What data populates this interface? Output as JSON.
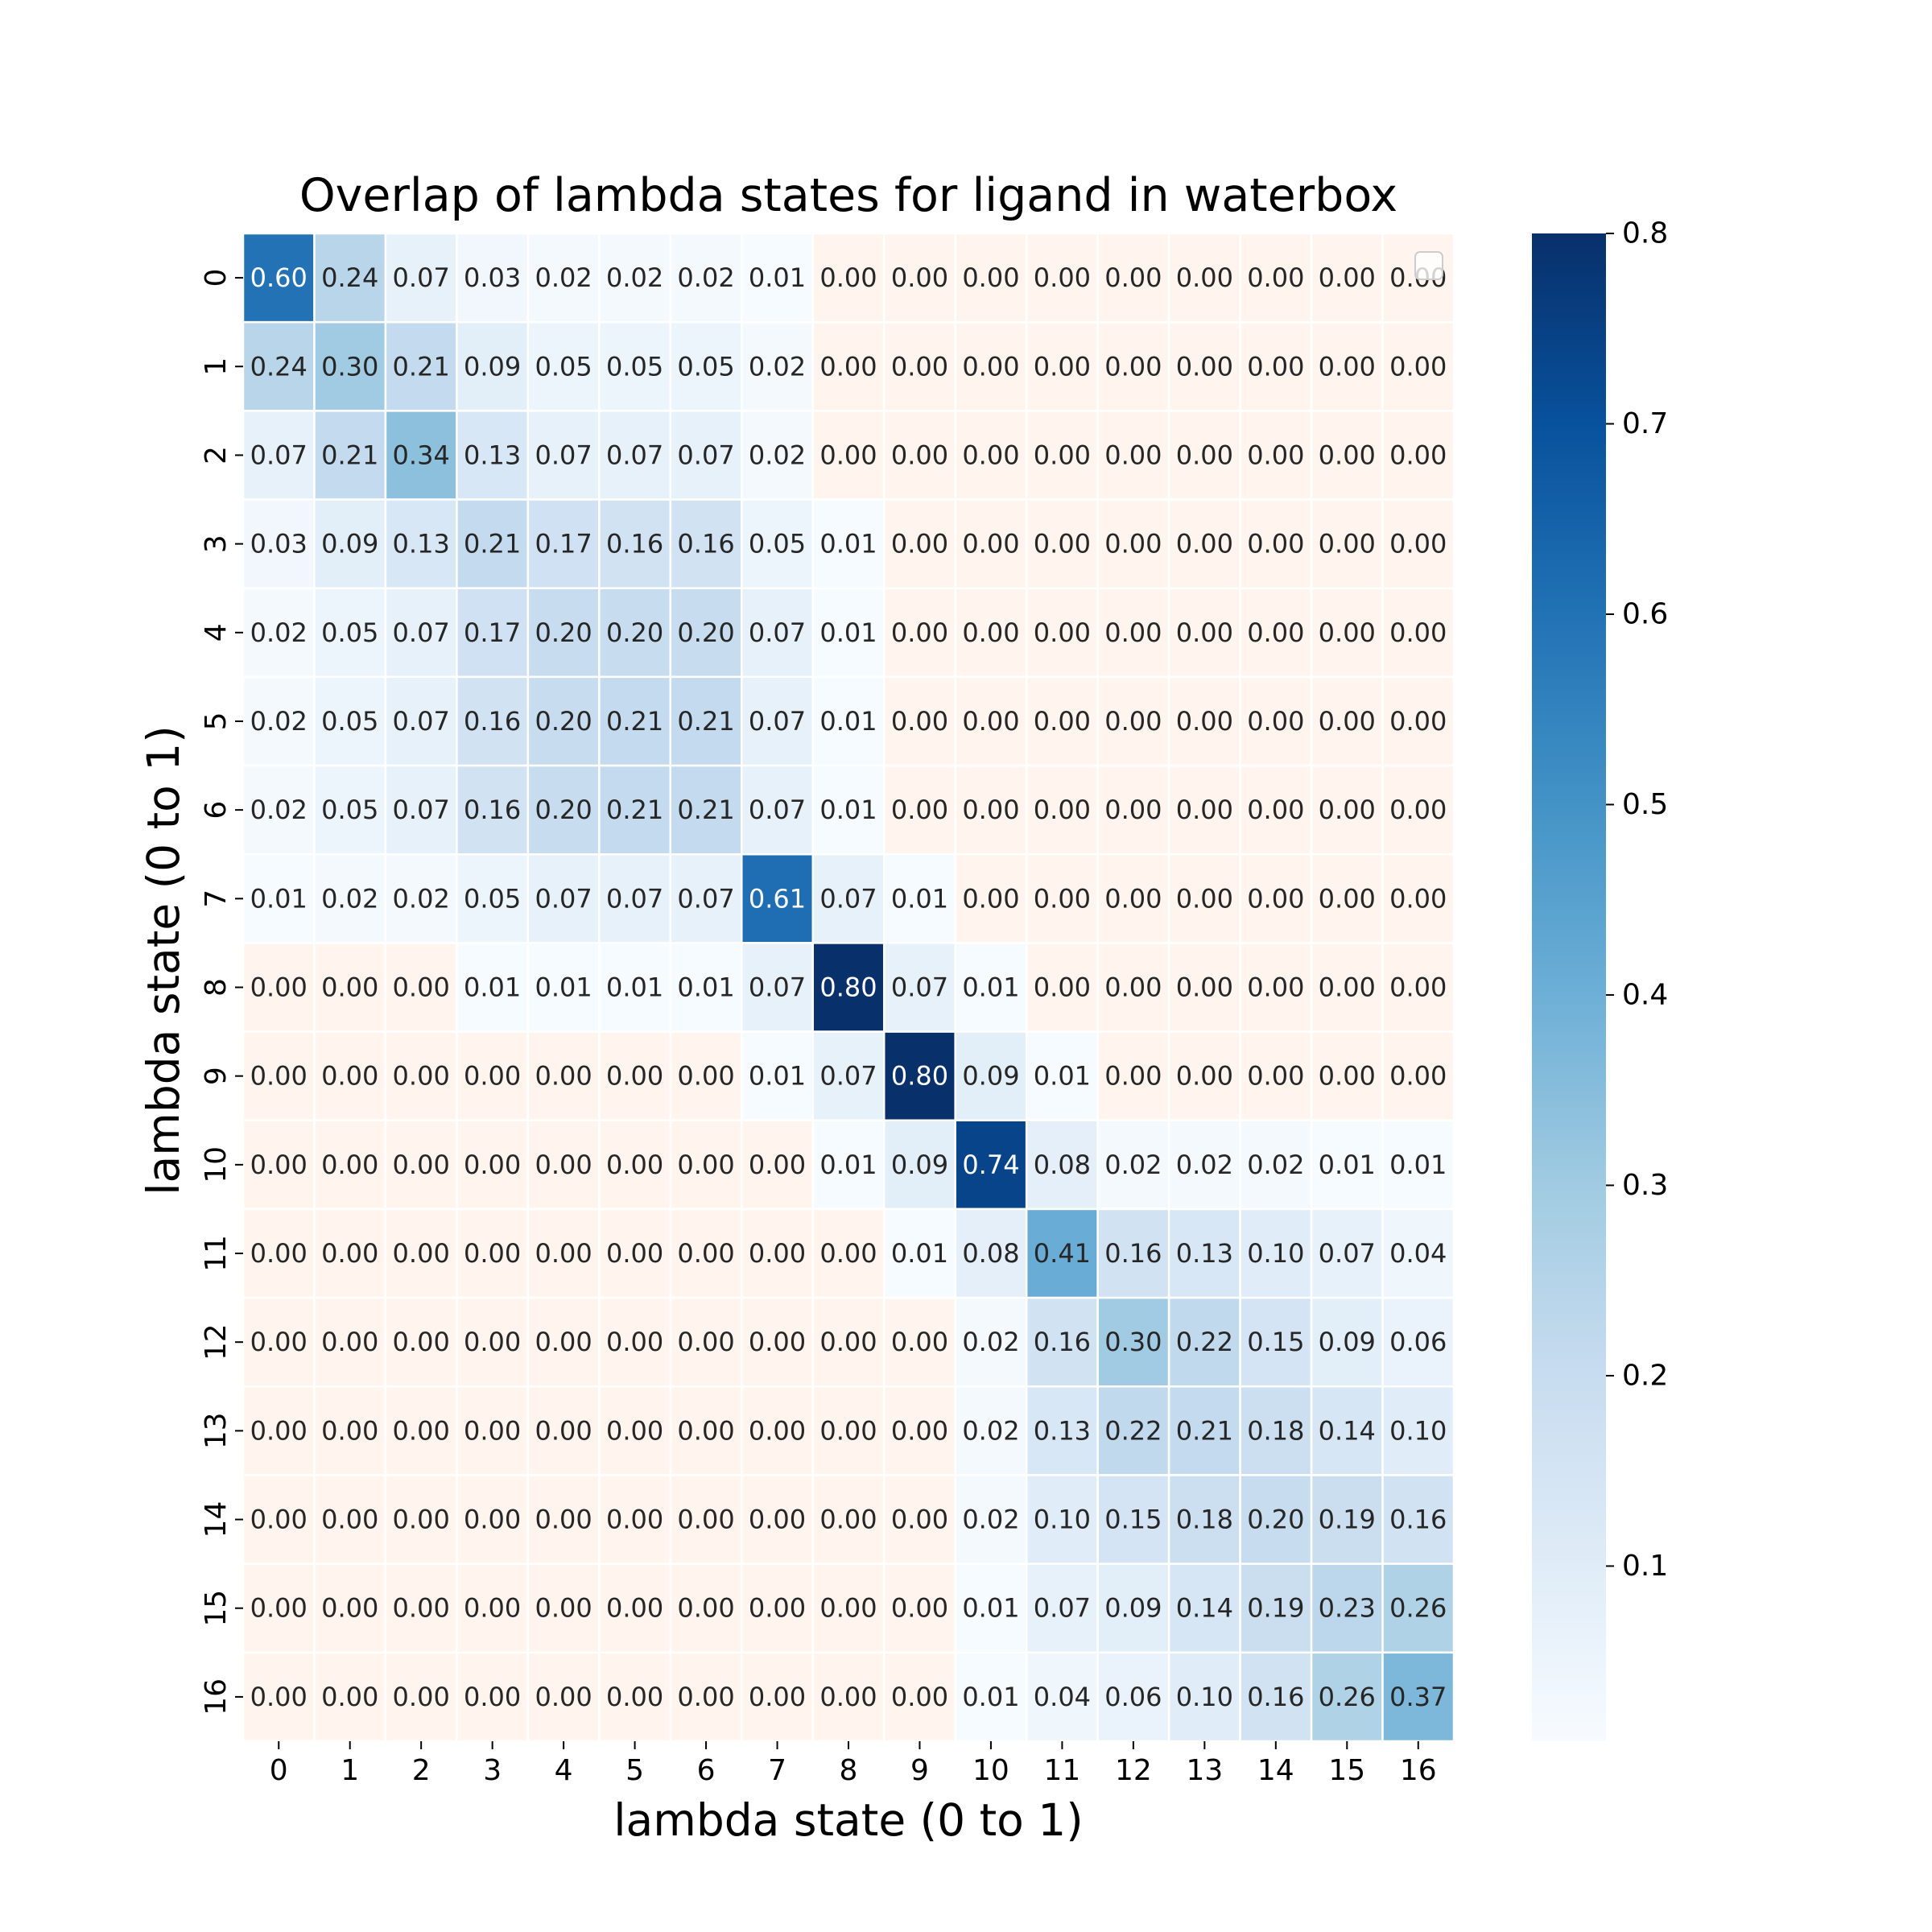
{
  "chart_data": {
    "type": "heatmap",
    "title": "Overlap of lambda states for ligand in waterbox",
    "xlabel": "lambda state (0 to 1)",
    "ylabel": "lambda state (0 to 1)",
    "x_categories": [
      "0",
      "1",
      "2",
      "3",
      "4",
      "5",
      "6",
      "7",
      "8",
      "9",
      "10",
      "11",
      "12",
      "13",
      "14",
      "15",
      "16"
    ],
    "y_categories": [
      "0",
      "1",
      "2",
      "3",
      "4",
      "5",
      "6",
      "7",
      "8",
      "9",
      "10",
      "11",
      "12",
      "13",
      "14",
      "15",
      "16"
    ],
    "values": [
      [
        0.6,
        0.24,
        0.07,
        0.03,
        0.02,
        0.02,
        0.02,
        0.01,
        0.0,
        0.0,
        0.0,
        0.0,
        0.0,
        0.0,
        0.0,
        0.0,
        0.0
      ],
      [
        0.24,
        0.3,
        0.21,
        0.09,
        0.05,
        0.05,
        0.05,
        0.02,
        0.0,
        0.0,
        0.0,
        0.0,
        0.0,
        0.0,
        0.0,
        0.0,
        0.0
      ],
      [
        0.07,
        0.21,
        0.34,
        0.13,
        0.07,
        0.07,
        0.07,
        0.02,
        0.0,
        0.0,
        0.0,
        0.0,
        0.0,
        0.0,
        0.0,
        0.0,
        0.0
      ],
      [
        0.03,
        0.09,
        0.13,
        0.21,
        0.17,
        0.16,
        0.16,
        0.05,
        0.01,
        0.0,
        0.0,
        0.0,
        0.0,
        0.0,
        0.0,
        0.0,
        0.0
      ],
      [
        0.02,
        0.05,
        0.07,
        0.17,
        0.2,
        0.2,
        0.2,
        0.07,
        0.01,
        0.0,
        0.0,
        0.0,
        0.0,
        0.0,
        0.0,
        0.0,
        0.0
      ],
      [
        0.02,
        0.05,
        0.07,
        0.16,
        0.2,
        0.21,
        0.21,
        0.07,
        0.01,
        0.0,
        0.0,
        0.0,
        0.0,
        0.0,
        0.0,
        0.0,
        0.0
      ],
      [
        0.02,
        0.05,
        0.07,
        0.16,
        0.2,
        0.21,
        0.21,
        0.07,
        0.01,
        0.0,
        0.0,
        0.0,
        0.0,
        0.0,
        0.0,
        0.0,
        0.0
      ],
      [
        0.01,
        0.02,
        0.02,
        0.05,
        0.07,
        0.07,
        0.07,
        0.61,
        0.07,
        0.01,
        0.0,
        0.0,
        0.0,
        0.0,
        0.0,
        0.0,
        0.0
      ],
      [
        0.0,
        0.0,
        0.0,
        0.01,
        0.01,
        0.01,
        0.01,
        0.07,
        0.8,
        0.07,
        0.01,
        0.0,
        0.0,
        0.0,
        0.0,
        0.0,
        0.0
      ],
      [
        0.0,
        0.0,
        0.0,
        0.0,
        0.0,
        0.0,
        0.0,
        0.01,
        0.07,
        0.8,
        0.09,
        0.01,
        0.0,
        0.0,
        0.0,
        0.0,
        0.0
      ],
      [
        0.0,
        0.0,
        0.0,
        0.0,
        0.0,
        0.0,
        0.0,
        0.0,
        0.01,
        0.09,
        0.74,
        0.08,
        0.02,
        0.02,
        0.02,
        0.01,
        0.01
      ],
      [
        0.0,
        0.0,
        0.0,
        0.0,
        0.0,
        0.0,
        0.0,
        0.0,
        0.0,
        0.01,
        0.08,
        0.41,
        0.16,
        0.13,
        0.1,
        0.07,
        0.04
      ],
      [
        0.0,
        0.0,
        0.0,
        0.0,
        0.0,
        0.0,
        0.0,
        0.0,
        0.0,
        0.0,
        0.02,
        0.16,
        0.3,
        0.22,
        0.15,
        0.09,
        0.06
      ],
      [
        0.0,
        0.0,
        0.0,
        0.0,
        0.0,
        0.0,
        0.0,
        0.0,
        0.0,
        0.0,
        0.02,
        0.13,
        0.22,
        0.21,
        0.18,
        0.14,
        0.1
      ],
      [
        0.0,
        0.0,
        0.0,
        0.0,
        0.0,
        0.0,
        0.0,
        0.0,
        0.0,
        0.0,
        0.02,
        0.1,
        0.15,
        0.18,
        0.2,
        0.19,
        0.16
      ],
      [
        0.0,
        0.0,
        0.0,
        0.0,
        0.0,
        0.0,
        0.0,
        0.0,
        0.0,
        0.0,
        0.01,
        0.07,
        0.09,
        0.14,
        0.19,
        0.23,
        0.26
      ],
      [
        0.0,
        0.0,
        0.0,
        0.0,
        0.0,
        0.0,
        0.0,
        0.0,
        0.0,
        0.0,
        0.01,
        0.04,
        0.06,
        0.1,
        0.16,
        0.26,
        0.37
      ]
    ],
    "colormap": "Blues",
    "below_threshold_color": "#fff5ee",
    "value_format": "0.00",
    "colorbar": {
      "range": [
        0.008,
        0.8
      ],
      "ticks": [
        0.1,
        0.2,
        0.3,
        0.4,
        0.5,
        0.6,
        0.7,
        0.8
      ],
      "tick_labels": [
        "0.1",
        "0.2",
        "0.3",
        "0.4",
        "0.5",
        "0.6",
        "0.7",
        "0.8"
      ]
    },
    "legend": "top-right",
    "grid": false
  }
}
